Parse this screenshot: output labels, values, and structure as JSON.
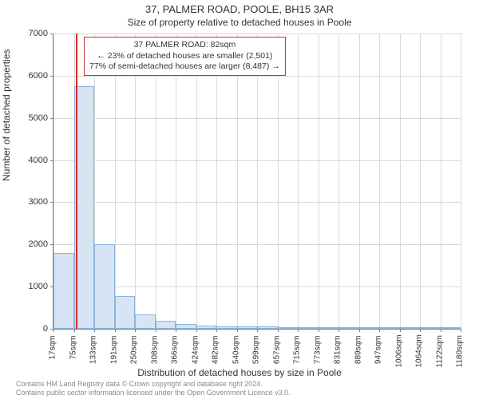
{
  "title": "37, PALMER ROAD, POOLE, BH15 3AR",
  "subtitle": "Size of property relative to detached houses in Poole",
  "y_axis_label": "Number of detached properties",
  "x_axis_label": "Distribution of detached houses by size in Poole",
  "info_box": {
    "line1": "37 PALMER ROAD: 82sqm",
    "line2": "← 23% of detached houses are smaller (2,501)",
    "line3": "77% of semi-detached houses are larger (8,487) →"
  },
  "chart": {
    "type": "histogram",
    "y_max": 7000,
    "y_ticks": [
      0,
      1000,
      2000,
      3000,
      4000,
      5000,
      6000,
      7000
    ],
    "x_tick_labels": [
      "17sqm",
      "75sqm",
      "133sqm",
      "191sqm",
      "250sqm",
      "308sqm",
      "366sqm",
      "424sqm",
      "482sqm",
      "540sqm",
      "599sqm",
      "657sqm",
      "715sqm",
      "773sqm",
      "831sqm",
      "889sqm",
      "947sqm",
      "1006sqm",
      "1064sqm",
      "1122sqm",
      "1180sqm"
    ],
    "bars": [
      1800,
      5750,
      2000,
      780,
      350,
      185,
      120,
      85,
      60,
      50,
      48,
      45,
      30,
      18,
      12,
      8,
      6,
      4,
      3,
      2
    ],
    "bar_fill": "#d6e4f4",
    "bar_stroke": "#8bb4dd",
    "marker_position": 1.1,
    "marker_color": "#d62b2b",
    "grid_color": "#d9d9d9",
    "background_color": "#ffffff"
  },
  "attribution": {
    "line1": "Contains HM Land Registry data © Crown copyright and database right 2024.",
    "line2": "Contains public sector information licensed under the Open Government Licence v3.0."
  }
}
